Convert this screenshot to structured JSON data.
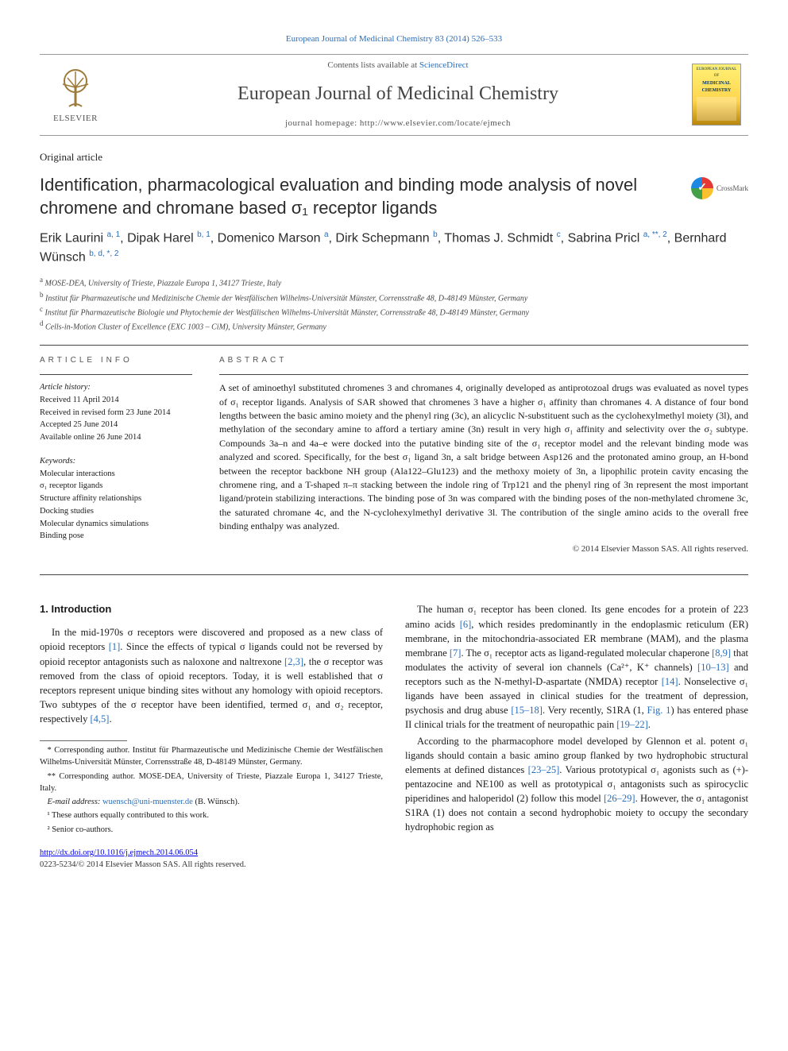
{
  "top_citation": "European Journal of Medicinal Chemistry 83 (2014) 526–533",
  "masthead": {
    "contents_prefix": "Contents lists available at ",
    "contents_link": "ScienceDirect",
    "journal_name": "European Journal of Medicinal Chemistry",
    "homepage_prefix": "journal homepage: ",
    "homepage_url": "http://www.elsevier.com/locate/ejmech",
    "publisher": "ELSEVIER",
    "cover_top": "EUROPEAN JOURNAL OF",
    "cover_mid": "MEDICINAL CHEMISTRY"
  },
  "article_type": "Original article",
  "title": "Identification, pharmacological evaluation and binding mode analysis of novel chromene and chromane based σ₁ receptor ligands",
  "crossmark": "CrossMark",
  "authors_html": "Erik Laurini <sup>a, 1</sup>, Dipak Harel <sup>b, 1</sup>, Domenico Marson <sup>a</sup>, Dirk Schepmann <sup>b</sup>, Thomas J. Schmidt <sup>c</sup>, Sabrina Pricl <sup>a, **, 2</sup>, Bernhard Wünsch <sup>b, d, *, 2</sup>",
  "affiliations": {
    "a": "MOSE-DEA, University of Trieste, Piazzale Europa 1, 34127 Trieste, Italy",
    "b": "Institut für Pharmazeutische und Medizinische Chemie der Westfälischen Wilhelms-Universität Münster, Corrensstraße 48, D-48149 Münster, Germany",
    "c": "Institut für Pharmazeutische Biologie und Phytochemie der Westfälischen Wilhelms-Universität Münster, Corrensstraße 48, D-48149 Münster, Germany",
    "d": "Cells-in-Motion Cluster of Excellence (EXC 1003 – CiM), University Münster, Germany"
  },
  "article_info": {
    "heading": "ARTICLE INFO",
    "history_label": "Article history:",
    "history": [
      "Received 11 April 2014",
      "Received in revised form 23 June 2014",
      "Accepted 25 June 2014",
      "Available online 26 June 2014"
    ],
    "keywords_label": "Keywords:",
    "keywords": [
      "Molecular interactions",
      "σ₁ receptor ligands",
      "Structure affinity relationships",
      "Docking studies",
      "Molecular dynamics simulations",
      "Binding pose"
    ]
  },
  "abstract": {
    "heading": "ABSTRACT",
    "text": "A set of aminoethyl substituted chromenes 3 and chromanes 4, originally developed as antiprotozoal drugs was evaluated as novel types of σ₁ receptor ligands. Analysis of SAR showed that chromenes 3 have a higher σ₁ affinity than chromanes 4. A distance of four bond lengths between the basic amino moiety and the phenyl ring (3c), an alicyclic N-substituent such as the cyclohexylmethyl moiety (3l), and methylation of the secondary amine to afford a tertiary amine (3n) result in very high σ₁ affinity and selectivity over the σ₂ subtype. Compounds 3a–n and 4a–e were docked into the putative binding site of the σ₁ receptor model and the relevant binding mode was analyzed and scored. Specifically, for the best σ₁ ligand 3n, a salt bridge between Asp126 and the protonated amino group, an H-bond between the receptor backbone NH group (Ala122–Glu123) and the methoxy moiety of 3n, a lipophilic protein cavity encasing the chromene ring, and a T-shaped π–π stacking between the indole ring of Trp121 and the phenyl ring of 3n represent the most important ligand/protein stabilizing interactions. The binding pose of 3n was compared with the binding poses of the non-methylated chromene 3c, the saturated chromane 4c, and the N-cyclohexylmethyl derivative 3l. The contribution of the single amino acids to the overall free binding enthalpy was analyzed.",
    "copyright": "© 2014 Elsevier Masson SAS. All rights reserved."
  },
  "body": {
    "section_heading": "1. Introduction",
    "p1_pre": "In the mid-1970s σ receptors were discovered and proposed as a new class of opioid receptors ",
    "ref1": "[1]",
    "p1_mid1": ". Since the effects of typical σ ligands could not be reversed by opioid receptor antagonists such as naloxone and naltrexone ",
    "ref23": "[2,3]",
    "p1_mid2": ", the σ receptor was removed from the class of opioid receptors. Today, it is well established that σ receptors represent unique binding sites without any homology with opioid receptors. Two subtypes of the σ receptor have been identified, termed σ₁ and σ₂ receptor, respectively ",
    "ref45": "[4,5]",
    "p1_end": ".",
    "p2_pre": "The human σ₁ receptor has been cloned. Its gene encodes for a protein of 223 amino acids ",
    "ref6": "[6]",
    "p2_a": ", which resides predominantly in the endoplasmic reticulum (ER) membrane, in the mitochondria-associated ER membrane (MAM), and the plasma membrane ",
    "ref7": "[7]",
    "p2_b": ". The σ₁ receptor acts as ligand-regulated molecular chaperone ",
    "ref89": "[8,9]",
    "p2_c": " that modulates the activity of several ion channels (Ca²⁺, K⁺ channels) ",
    "ref1013": "[10–13]",
    "p2_d": " and receptors such as the N-methyl-D-aspartate (NMDA) receptor ",
    "ref14": "[14]",
    "p2_e": ". Nonselective σ₁ ligands have been assayed in clinical studies for the treatment of depression, psychosis and drug abuse ",
    "ref1518": "[15–18]",
    "p2_f": ". Very recently, S1RA (1, ",
    "fig1": "Fig. 1",
    "p2_g": ") has entered phase II clinical trials for the treatment of neuropathic pain ",
    "ref1922": "[19–22]",
    "p2_h": ".",
    "p3_pre": "According to the pharmacophore model developed by Glennon et al. potent σ₁ ligands should contain a basic amino group flanked by two hydrophobic structural elements at defined distances ",
    "ref2325": "[23–25]",
    "p3_a": ". Various prototypical σ₁ agonists such as (+)-pentazocine and NE100 as well as prototypical σ₁ antagonists such as spirocyclic piperidines and haloperidol (2) follow this model ",
    "ref2629": "[26–29]",
    "p3_b": ". However, the σ₁ antagonist S1RA (1) does not contain a second hydrophobic moiety to occupy the secondary hydrophobic region as"
  },
  "footnotes": {
    "corr1": "* Corresponding author. Institut für Pharmazeutische und Medizinische Chemie der Westfälischen Wilhelms-Universität Münster, Corrensstraße 48, D-48149 Münster, Germany.",
    "corr2": "** Corresponding author. MOSE-DEA, University of Trieste, Piazzale Europa 1, 34127 Trieste, Italy.",
    "email_label": "E-mail address: ",
    "email": "wuensch@uni-muenster.de",
    "email_suffix": " (B. Wünsch).",
    "n1": "¹ These authors equally contributed to this work.",
    "n2": "² Senior co-authors."
  },
  "doi": {
    "url": "http://dx.doi.org/10.1016/j.ejmech.2014.06.054",
    "line2": "0223-5234/© 2014 Elsevier Masson SAS. All rights reserved."
  },
  "colors": {
    "link": "#2a6ebb",
    "text": "#1a1a1a",
    "rule": "#444444"
  }
}
